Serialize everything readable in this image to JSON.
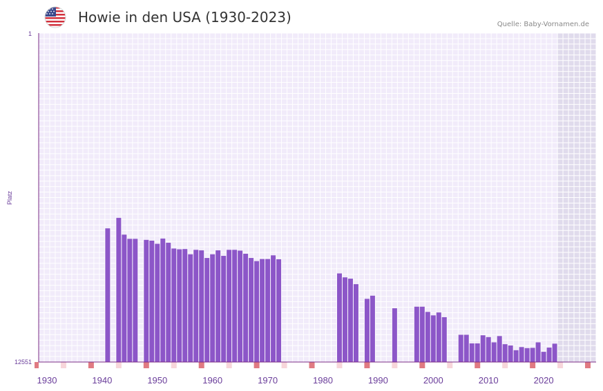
{
  "header": {
    "title": "Howie in den USA (1930-2023)",
    "source": "Quelle: Baby-Vornamen.de",
    "flag_icon": "usa-flag-icon"
  },
  "colors": {
    "bar": "#8c56c8",
    "plot_background": "#f1ebfa",
    "grid": "#ffffff",
    "forecast_shade": "#e0dbec",
    "axis": "#7b2d86",
    "tick_text": "#6a3d9a",
    "marker_strong": "#e07a82",
    "marker_light": "#f7d6da"
  },
  "chart_data": {
    "type": "bar",
    "title": "Howie in den USA (1930-2023)",
    "xlabel": "",
    "ylabel": "Platz",
    "y_axis_labels": [
      "1",
      "12551"
    ],
    "y_inverted": true,
    "ylim": [
      1,
      12551
    ],
    "xlim": [
      1928.5,
      2029.5
    ],
    "x_ticks": [
      1930,
      1940,
      1950,
      1960,
      1970,
      1980,
      1990,
      2000,
      2010,
      2020
    ],
    "shaded_x_range": [
      2022.5,
      2029.5
    ],
    "strong_markers": [
      1928,
      1938,
      1948,
      1958,
      1968,
      1978,
      1988,
      1998,
      2008,
      2018,
      2028
    ],
    "light_markers": [
      1933,
      1943,
      1953,
      1963,
      1973,
      1983,
      1993,
      2003,
      2013,
      2023
    ],
    "grid": true,
    "years": [
      1941,
      1943,
      1944,
      1945,
      1946,
      1948,
      1949,
      1950,
      1951,
      1952,
      1953,
      1954,
      1955,
      1956,
      1957,
      1958,
      1959,
      1960,
      1961,
      1962,
      1963,
      1964,
      1965,
      1966,
      1967,
      1968,
      1969,
      1970,
      1971,
      1972,
      1983,
      1984,
      1985,
      1986,
      1988,
      1989,
      1993,
      1997,
      1998,
      1999,
      2000,
      2001,
      2002,
      2005,
      2006,
      2007,
      2008,
      2009,
      2010,
      2011,
      2012,
      2013,
      2014,
      2015,
      2016,
      2017,
      2018,
      2019,
      2020,
      2021,
      2022
    ],
    "values": [
      7450,
      7050,
      7690,
      7850,
      7850,
      7890,
      7920,
      8040,
      7840,
      8000,
      8220,
      8250,
      8240,
      8440,
      8270,
      8290,
      8580,
      8440,
      8290,
      8500,
      8270,
      8270,
      8300,
      8420,
      8580,
      8700,
      8620,
      8620,
      8480,
      8630,
      9170,
      9320,
      9370,
      9580,
      10140,
      10020,
      10500,
      10440,
      10440,
      10640,
      10770,
      10660,
      10840,
      11510,
      11510,
      11840,
      11840,
      11530,
      11600,
      11800,
      11560,
      11870,
      11920,
      12100,
      11980,
      12020,
      12010,
      11800,
      12160,
      12000,
      11850
    ]
  }
}
